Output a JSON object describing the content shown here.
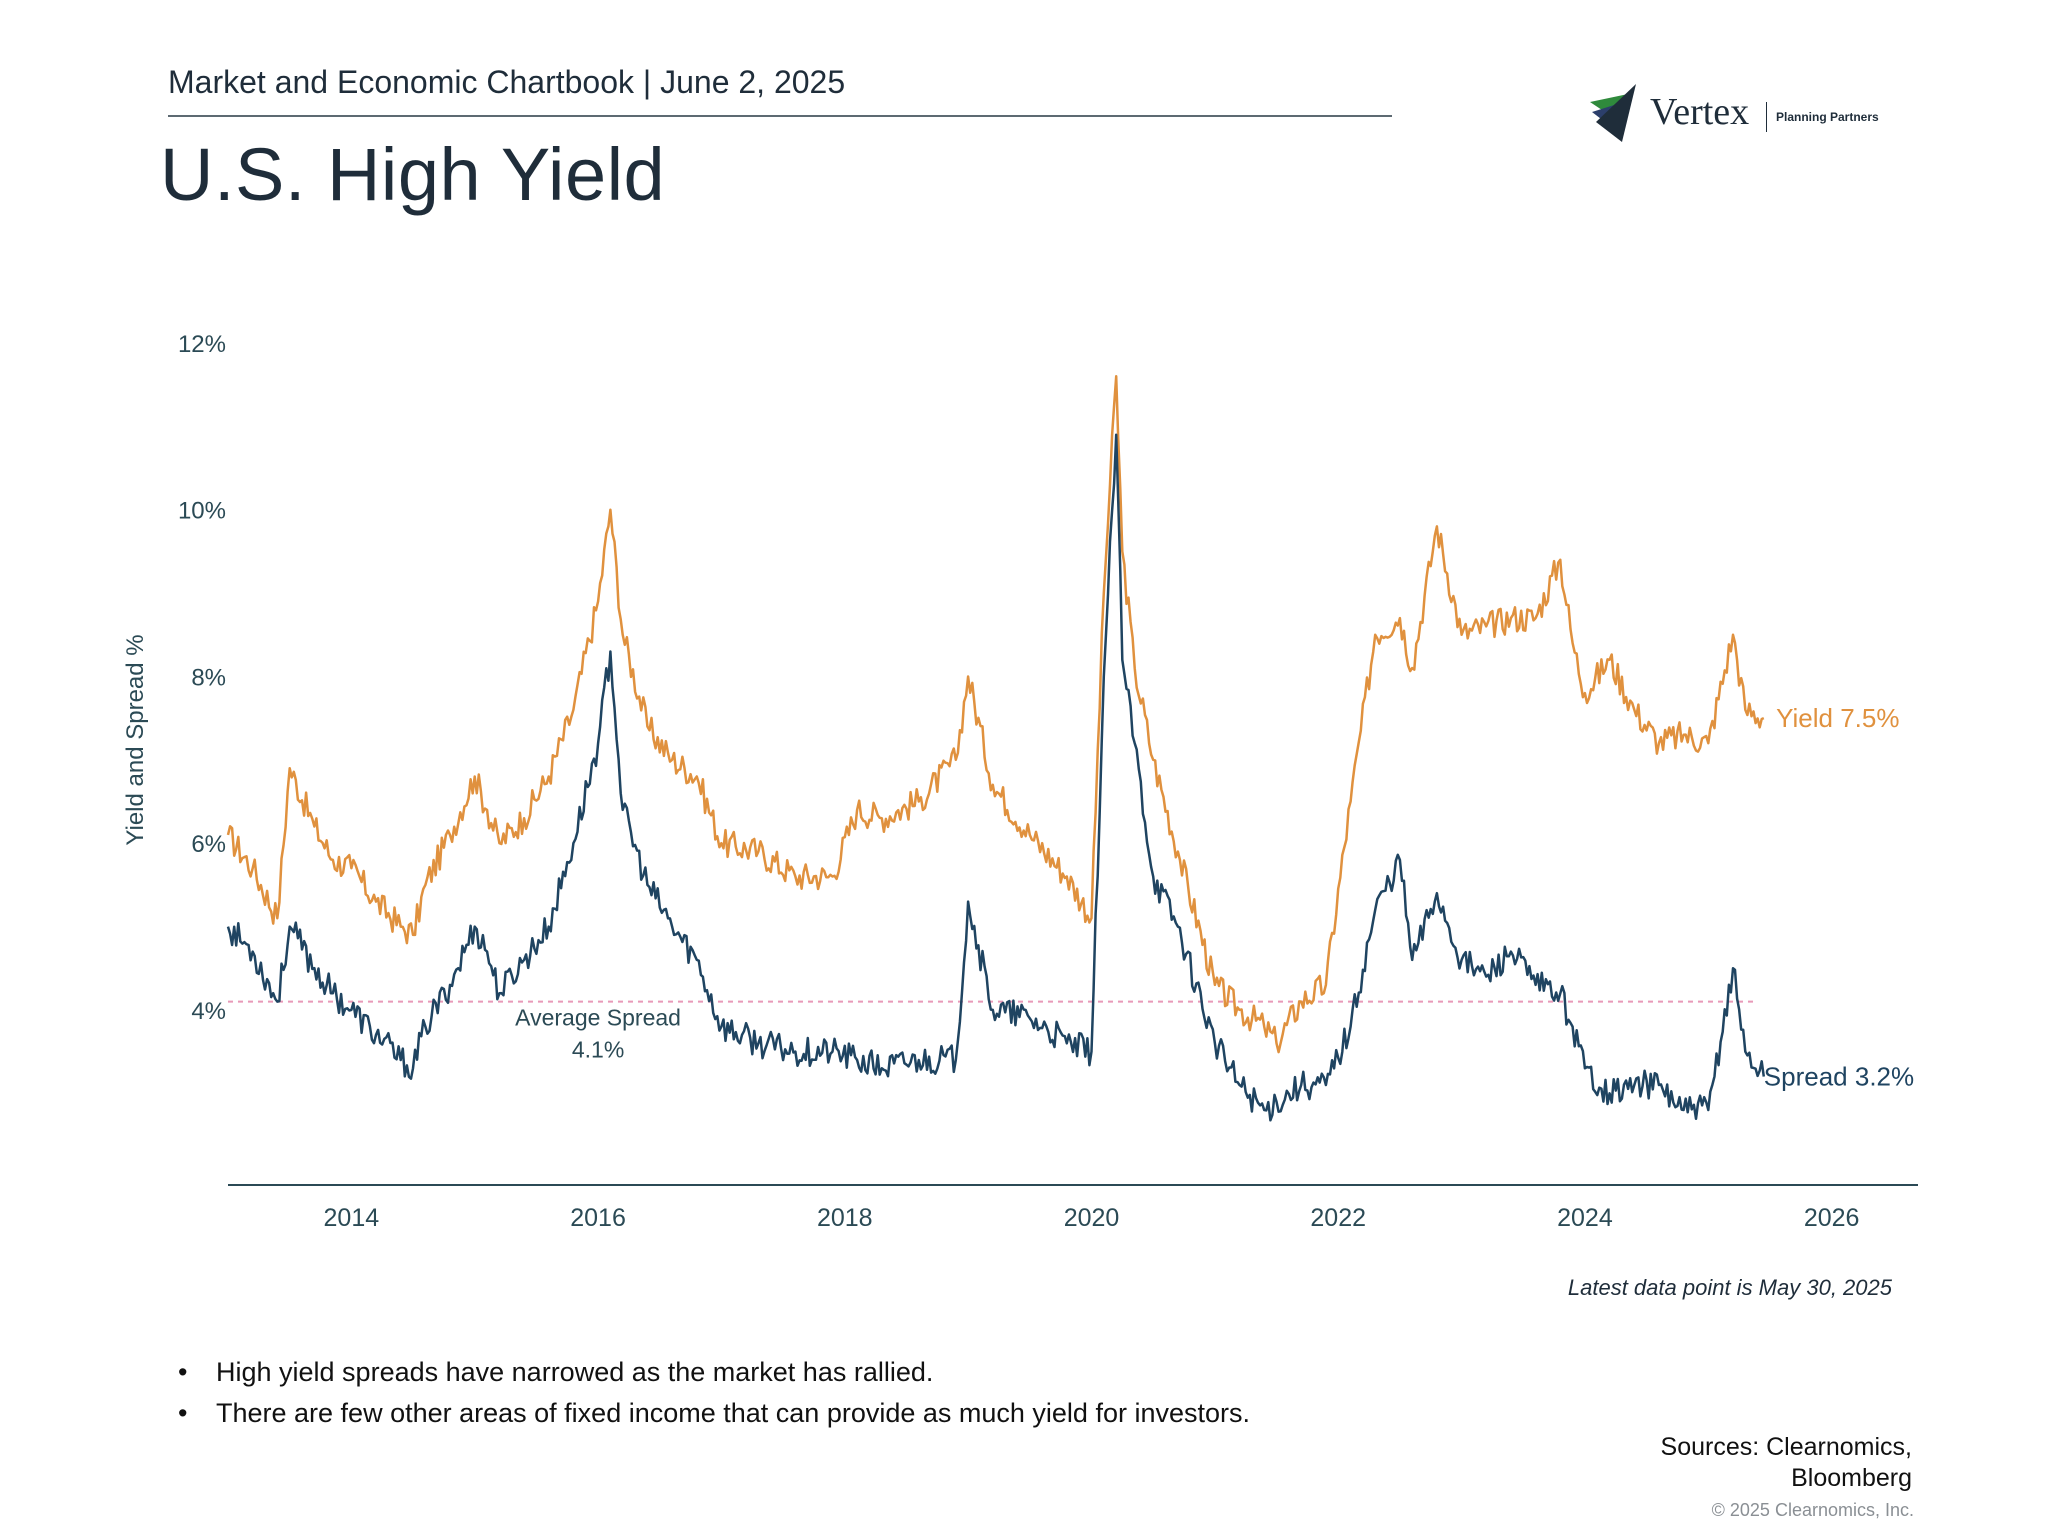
{
  "header": {
    "subtitle": "Market and Economic Chartbook | June 2, 2025",
    "title": "U.S. High Yield"
  },
  "logo": {
    "name": "Vertex",
    "tagline": "Planning Partners"
  },
  "colors": {
    "yield": "#e0913e",
    "spread": "#1f4461",
    "average": "#e899b8",
    "axis": "#2b4a55",
    "text": "#1f2d3a"
  },
  "chart_data": {
    "type": "line",
    "title": "U.S. High Yield",
    "ylabel": "Yield and Spread %",
    "xlabel": "",
    "xlim": [
      2013.0,
      2026.7
    ],
    "ylim": [
      1.9,
      12.0
    ],
    "yticks": [
      4,
      6,
      8,
      10,
      12
    ],
    "ytick_labels": [
      "4%",
      "6%",
      "8%",
      "10%",
      "12%"
    ],
    "xticks": [
      2014,
      2016,
      2018,
      2020,
      2022,
      2024,
      2026
    ],
    "xtick_labels": [
      "2014",
      "2016",
      "2018",
      "2020",
      "2022",
      "2024",
      "2026"
    ],
    "grid": false,
    "average_spread": {
      "value": 4.1,
      "label_line1": "Average Spread",
      "label_line2": "4.1%"
    },
    "series": [
      {
        "name": "Yield",
        "end_label": "Yield 7.5%",
        "x": [
          2013.0,
          2013.2,
          2013.4,
          2013.5,
          2013.7,
          2013.85,
          2014.0,
          2014.2,
          2014.4,
          2014.5,
          2014.6,
          2014.8,
          2015.0,
          2015.1,
          2015.2,
          2015.4,
          2015.6,
          2015.8,
          2016.0,
          2016.1,
          2016.2,
          2016.4,
          2016.6,
          2016.8,
          2017.0,
          2017.3,
          2017.6,
          2017.9,
          2018.1,
          2018.3,
          2018.6,
          2018.9,
          2019.0,
          2019.2,
          2019.5,
          2019.8,
          2020.0,
          2020.1,
          2020.2,
          2020.25,
          2020.35,
          2020.5,
          2020.7,
          2021.0,
          2021.2,
          2021.4,
          2021.5,
          2021.7,
          2021.9,
          2022.1,
          2022.3,
          2022.5,
          2022.6,
          2022.8,
          2023.0,
          2023.2,
          2023.4,
          2023.6,
          2023.8,
          2023.9,
          2024.0,
          2024.2,
          2024.4,
          2024.6,
          2024.8,
          2025.0,
          2025.2,
          2025.3,
          2025.45
        ],
        "values": [
          6.1,
          5.7,
          5.1,
          6.9,
          6.2,
          5.8,
          5.7,
          5.3,
          5.0,
          4.9,
          5.5,
          6.1,
          6.8,
          6.4,
          6.0,
          6.3,
          6.8,
          7.6,
          8.9,
          10.0,
          8.5,
          7.4,
          7.0,
          6.8,
          6.0,
          5.9,
          5.6,
          5.6,
          6.4,
          6.3,
          6.5,
          7.0,
          8.0,
          6.7,
          6.1,
          5.6,
          5.1,
          9.0,
          11.6,
          9.5,
          8.1,
          7.0,
          5.9,
          4.3,
          4.0,
          3.8,
          3.6,
          4.1,
          4.3,
          6.5,
          8.5,
          8.7,
          8.1,
          9.8,
          8.5,
          8.6,
          8.7,
          8.7,
          9.4,
          8.4,
          7.8,
          8.2,
          7.6,
          7.2,
          7.3,
          7.2,
          8.5,
          7.6,
          7.5
        ]
      },
      {
        "name": "Spread",
        "end_label": "Spread 3.2%",
        "x": [
          2013.0,
          2013.2,
          2013.4,
          2013.5,
          2013.7,
          2013.85,
          2014.0,
          2014.2,
          2014.4,
          2014.5,
          2014.6,
          2014.8,
          2015.0,
          2015.1,
          2015.2,
          2015.4,
          2015.6,
          2015.8,
          2016.0,
          2016.1,
          2016.2,
          2016.4,
          2016.6,
          2016.8,
          2017.0,
          2017.3,
          2017.6,
          2017.9,
          2018.1,
          2018.3,
          2018.6,
          2018.9,
          2019.0,
          2019.2,
          2019.5,
          2019.8,
          2020.0,
          2020.1,
          2020.2,
          2020.25,
          2020.35,
          2020.5,
          2020.7,
          2021.0,
          2021.2,
          2021.4,
          2021.5,
          2021.7,
          2021.9,
          2022.1,
          2022.3,
          2022.5,
          2022.6,
          2022.8,
          2023.0,
          2023.2,
          2023.4,
          2023.6,
          2023.8,
          2023.9,
          2024.0,
          2024.2,
          2024.4,
          2024.6,
          2024.8,
          2025.0,
          2025.2,
          2025.3,
          2025.45
        ],
        "values": [
          5.0,
          4.7,
          4.1,
          5.0,
          4.5,
          4.2,
          4.0,
          3.7,
          3.4,
          3.3,
          3.8,
          4.3,
          5.0,
          4.7,
          4.2,
          4.6,
          5.0,
          6.0,
          7.2,
          8.3,
          6.4,
          5.5,
          5.0,
          4.6,
          3.8,
          3.6,
          3.5,
          3.5,
          3.4,
          3.3,
          3.4,
          3.4,
          5.3,
          4.0,
          3.9,
          3.6,
          3.5,
          8.0,
          10.9,
          8.2,
          7.2,
          5.6,
          5.0,
          3.6,
          3.1,
          2.8,
          2.9,
          3.1,
          3.1,
          3.8,
          5.2,
          5.8,
          4.6,
          5.4,
          4.6,
          4.4,
          4.7,
          4.3,
          4.2,
          3.8,
          3.3,
          3.0,
          3.1,
          3.1,
          2.8,
          2.8,
          4.5,
          3.5,
          3.2
        ]
      }
    ]
  },
  "footer": {
    "note": "Latest data point is May 30, 2025",
    "bullets": [
      "High yield spreads have narrowed as the market has rallied.",
      "There are few other areas of fixed income that can provide as much yield for investors."
    ],
    "sources": "Sources: Clearnomics, Bloomberg",
    "copyright": "© 2025 Clearnomics, Inc."
  }
}
